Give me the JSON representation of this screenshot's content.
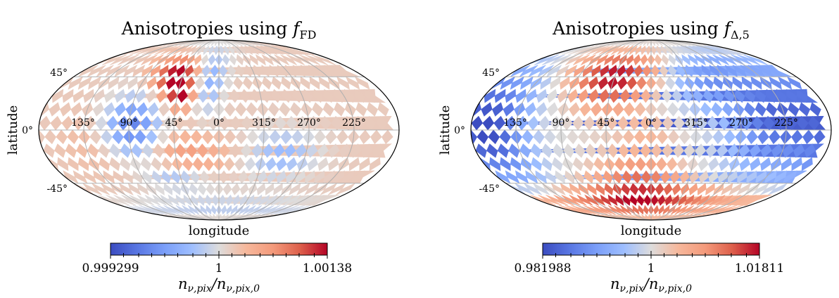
{
  "chart_data": [
    {
      "type": "heatmap",
      "projection": "mollweide",
      "title_prefix": "Anisotropies using ",
      "title_math_base": "f",
      "title_math_sub": "FD",
      "xlabel": "longitude",
      "ylabel": "latitude",
      "lon_tick_labels": [
        "135°",
        "90°",
        "45°",
        "0°",
        "315°",
        "270°",
        "225°"
      ],
      "lat_tick_labels": [
        "45°",
        "0°",
        "-45°"
      ],
      "grid": true,
      "colormap": "coolwarm",
      "colorbar": {
        "min_label": "0.999299",
        "mid_label": "1",
        "max_label": "1.00138",
        "label_base": "n",
        "label_sub_num": "ν,pix",
        "label_sub_den": "ν,pix,0",
        "label_slash": "/"
      },
      "field": {
        "baseline": 0.12,
        "blobs": [
          {
            "lon": 52,
            "lat": 45,
            "sigma_lon": 14,
            "sigma_lat": 14,
            "amp": 1.0
          },
          {
            "lon": 40,
            "lat": 28,
            "sigma_lon": 8,
            "sigma_lat": 8,
            "amp": 0.6
          },
          {
            "lon": 88,
            "lat": 2,
            "sigma_lon": 20,
            "sigma_lat": 18,
            "amp": -0.85
          },
          {
            "lon": 12,
            "lat": 48,
            "sigma_lon": 10,
            "sigma_lat": 22,
            "amp": -0.55
          },
          {
            "lon": 35,
            "lat": -20,
            "sigma_lon": 30,
            "sigma_lat": 12,
            "amp": 0.35
          },
          {
            "lon": 295,
            "lat": -20,
            "sigma_lon": 25,
            "sigma_lat": 15,
            "amp": -0.4
          },
          {
            "lon": 50,
            "lat": -40,
            "sigma_lon": 20,
            "sigma_lat": 8,
            "amp": -0.35
          },
          {
            "lon": 0,
            "lat": -70,
            "sigma_lon": 60,
            "sigma_lat": 10,
            "amp": -0.25
          },
          {
            "lon": 120,
            "lat": -10,
            "sigma_lon": 25,
            "sigma_lat": 20,
            "amp": 0.15
          }
        ],
        "dipole": {
          "amp": 0.0,
          "phase_lon": 0
        }
      }
    },
    {
      "type": "heatmap",
      "projection": "mollweide",
      "title_prefix": "Anisotropies using ",
      "title_math_base": "f",
      "title_math_sub": "Δ,5",
      "xlabel": "longitude",
      "ylabel": "latitude",
      "lon_tick_labels": [
        "135°",
        "90°",
        "45°",
        "0°",
        "315°",
        "270°",
        "225°"
      ],
      "lat_tick_labels": [
        "45°",
        "0°",
        "-45°"
      ],
      "grid": true,
      "colormap": "coolwarm",
      "colorbar": {
        "min_label": "0.981988",
        "mid_label": "1",
        "max_label": "1.01811",
        "label_base": "n",
        "label_sub_num": "ν,pix",
        "label_sub_den": "ν,pix,0",
        "label_slash": "/"
      },
      "field": {
        "baseline": 0.0,
        "blobs": [
          {
            "lon": 45,
            "lat": 45,
            "sigma_lon": 28,
            "sigma_lat": 20,
            "amp": 1.0
          },
          {
            "lon": 15,
            "lat": -50,
            "sigma_lon": 30,
            "sigma_lat": 22,
            "amp": 0.75
          },
          {
            "lon": 160,
            "lat": 0,
            "sigma_lon": 25,
            "sigma_lat": 30,
            "amp": -0.9
          },
          {
            "lon": 230,
            "lat": 10,
            "sigma_lon": 35,
            "sigma_lat": 30,
            "amp": -0.85
          },
          {
            "lon": 300,
            "lat": 45,
            "sigma_lon": 25,
            "sigma_lat": 20,
            "amp": -0.4
          },
          {
            "lon": 0,
            "lat": 0,
            "sigma_lon": 20,
            "sigma_lat": 8,
            "amp": 0.2
          },
          {
            "lon": 100,
            "lat": -60,
            "sigma_lon": 30,
            "sigma_lat": 10,
            "amp": 0.4
          },
          {
            "lon": 280,
            "lat": -60,
            "sigma_lon": 40,
            "sigma_lat": 10,
            "amp": 0.4
          }
        ],
        "dipole": {
          "amp": 0.0,
          "phase_lon": 0
        }
      }
    }
  ]
}
